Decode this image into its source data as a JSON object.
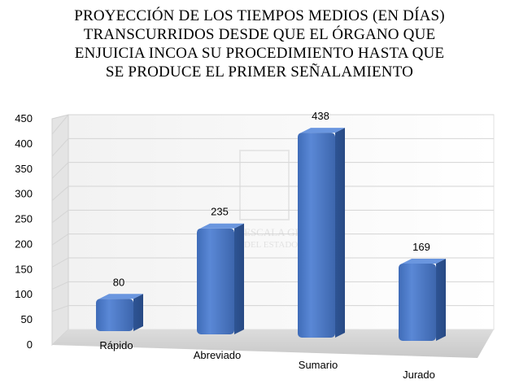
{
  "chart_data": {
    "type": "bar",
    "title": "PROYECCIÓN DE LOS TIEMPOS MEDIOS (EN DÍAS)\nTRANSCURRIDOS DESDE QUE EL ÓRGANO QUE\nENJUICIA INCOA SU PROCEDIMIENTO HASTA QUE\nSE PRODUCE EL PRIMER SEÑALAMIENTO",
    "categories": [
      "Rápido",
      "Abreviado",
      "Sumario",
      "Jurado"
    ],
    "values": [
      80,
      235,
      438,
      169
    ],
    "data_labels": [
      "80",
      "235",
      "438",
      "169"
    ],
    "yticks": [
      "0",
      "50",
      "100",
      "150",
      "200",
      "250",
      "300",
      "350",
      "400",
      "450"
    ],
    "ylim": [
      0,
      450
    ],
    "grid": true,
    "legend": "none",
    "style": "3d-cylinder-bars",
    "bar_color": "#4a78c8",
    "watermark": "ESCALA GENERAL DEL ESTADO"
  }
}
